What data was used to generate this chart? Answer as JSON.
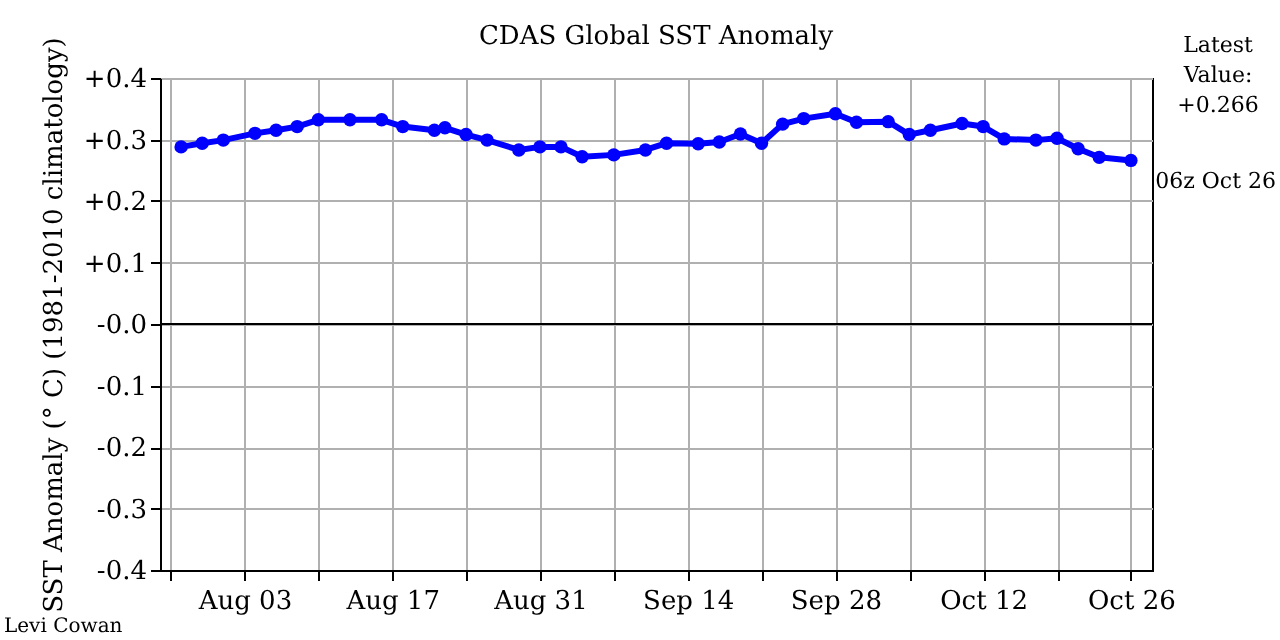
{
  "chart_data": {
    "type": "line",
    "title": "CDAS Global SST Anomaly",
    "ylabel": "SST Anomaly (° C) (1981-2010 climatology)",
    "x": [
      "--07-28",
      "--07-30",
      "--08-01",
      "--08-04",
      "--08-06",
      "--08-08",
      "--08-10",
      "--08-13",
      "--08-16",
      "--08-18",
      "--08-21",
      "--08-22",
      "--08-24",
      "--08-26",
      "--08-29",
      "--08-31",
      "--09-02",
      "--09-04",
      "--09-07",
      "--09-10",
      "--09-12",
      "--09-15",
      "--09-17",
      "--09-19",
      "--09-21",
      "--09-23",
      "--09-25",
      "--09-28",
      "--09-30",
      "--10-03",
      "--10-05",
      "--10-07",
      "--10-10",
      "--10-12",
      "--10-14",
      "--10-17",
      "--10-19",
      "--10-21",
      "--10-23",
      "--10-26"
    ],
    "series": [
      {
        "color": "#0000ff",
        "values": [
          0.288,
          0.294,
          0.299,
          0.31,
          0.315,
          0.321,
          0.332,
          0.332,
          0.332,
          0.321,
          0.315,
          0.319,
          0.308,
          0.299,
          0.283,
          0.288,
          0.288,
          0.272,
          0.275,
          0.283,
          0.294,
          0.293,
          0.296,
          0.309,
          0.294,
          0.325,
          0.334,
          0.342,
          0.328,
          0.329,
          0.308,
          0.315,
          0.326,
          0.321,
          0.301,
          0.299,
          0.302,
          0.285,
          0.271,
          0.266
        ]
      }
    ],
    "xlim": [
      "--07-26",
      "--10-28"
    ],
    "xticks": [
      {
        "value": "--07-27",
        "label": null
      },
      {
        "value": "--08-03",
        "label": "Aug 03"
      },
      {
        "value": "--08-10",
        "label": null
      },
      {
        "value": "--08-17",
        "label": "Aug 17"
      },
      {
        "value": "--08-24",
        "label": null
      },
      {
        "value": "--08-31",
        "label": "Aug 31"
      },
      {
        "value": "--09-07",
        "label": null
      },
      {
        "value": "--09-14",
        "label": "Sep 14"
      },
      {
        "value": "--09-21",
        "label": null
      },
      {
        "value": "--09-28",
        "label": "Sep 28"
      },
      {
        "value": "--10-05",
        "label": null
      },
      {
        "value": "--10-12",
        "label": "Oct 12"
      },
      {
        "value": "--10-19",
        "label": null
      },
      {
        "value": "--10-26",
        "label": "Oct 26"
      }
    ],
    "ylim": [
      -0.4,
      0.4
    ],
    "yticks": [
      {
        "value": -0.4,
        "label": "-0.4"
      },
      {
        "value": -0.3,
        "label": "-0.3"
      },
      {
        "value": -0.2,
        "label": "-0.2"
      },
      {
        "value": -0.1,
        "label": "-0.1"
      },
      {
        "value": 0,
        "label": "-0.0"
      },
      {
        "value": 0.1,
        "label": "+0.1"
      },
      {
        "value": 0.2,
        "label": "+0.2"
      },
      {
        "value": 0.3,
        "label": "+0.3"
      },
      {
        "value": 0.4,
        "label": "+0.4"
      }
    ],
    "grid": true,
    "marker": "circle",
    "line_style": "solid",
    "ref_lines": [
      {
        "axis": "y",
        "value": 0,
        "color": "#000000"
      }
    ],
    "annotations": [
      "Latest Value: +0.266",
      "06z Oct 26",
      "Levi Cowan"
    ]
  }
}
